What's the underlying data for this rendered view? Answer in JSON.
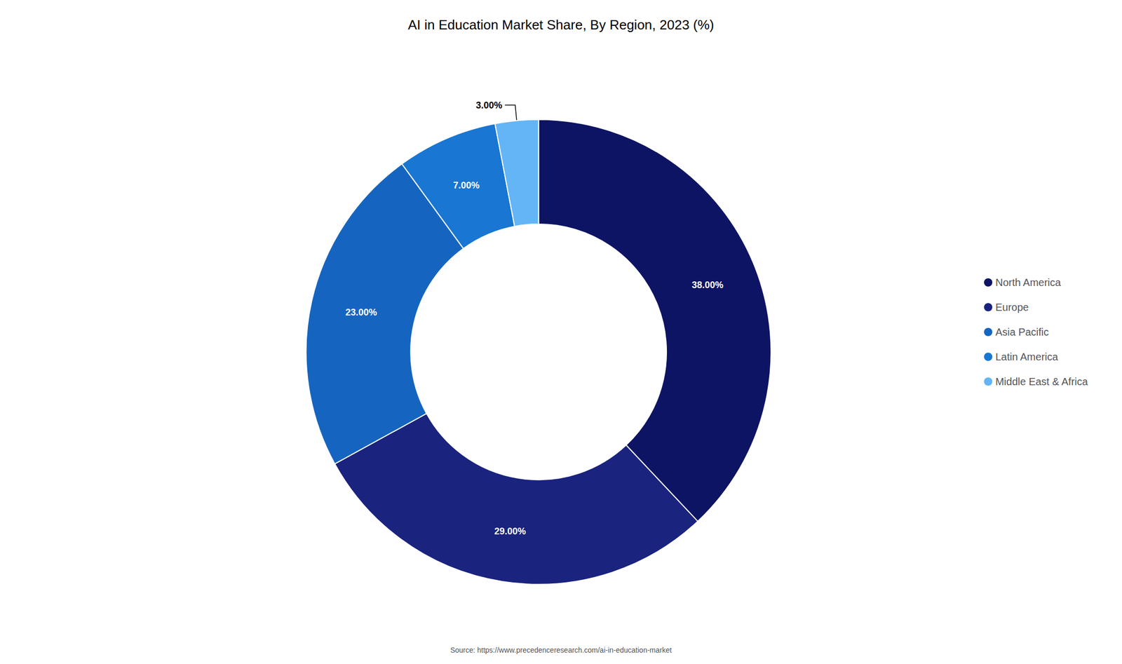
{
  "chart_data": {
    "type": "donut",
    "title": "AI in Education Market Share, By Region, 2023 (%)",
    "categories": [
      "North America",
      "Europe",
      "Asia Pacific",
      "Latin America",
      "Middle East & Africa"
    ],
    "values": [
      38.0,
      29.0,
      23.0,
      7.0,
      3.0
    ],
    "value_labels": [
      "38.00%",
      "29.00%",
      "23.00%",
      "7.00%",
      "3.00%"
    ],
    "colors": [
      "#0d1464",
      "#1a237e",
      "#1565c0",
      "#1976d2",
      "#64b5f6"
    ],
    "data_labels": true,
    "legend": "right",
    "annotations": [
      "Source: https://www.precedenceresearch.com/ai-in-education-market"
    ]
  }
}
